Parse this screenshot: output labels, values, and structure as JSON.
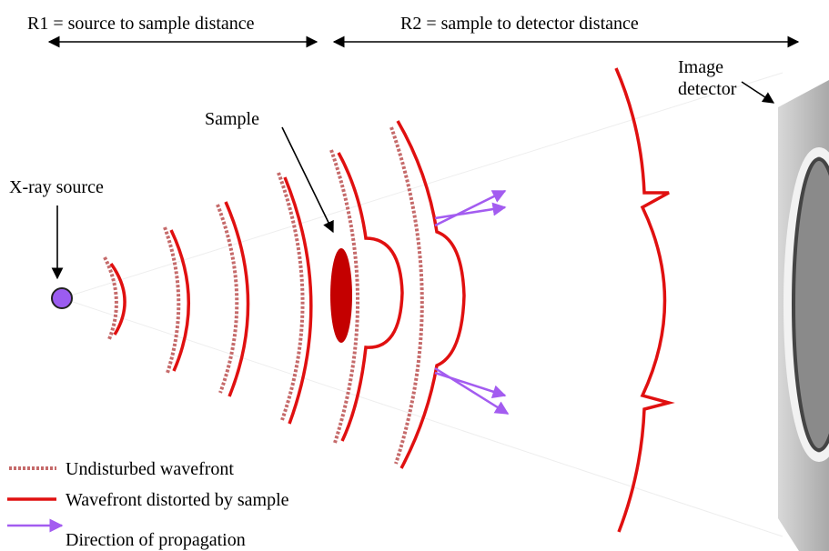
{
  "labels": {
    "r1": "R1 = source to sample distance",
    "r2": "R2 = sample to detector distance",
    "source": "X-ray source",
    "sample": "Sample",
    "detector": [
      "Image",
      "detector"
    ]
  },
  "legend": [
    "Undisturbed wavefront",
    "Wavefront distorted by sample",
    "Direction of propagation"
  ]
}
